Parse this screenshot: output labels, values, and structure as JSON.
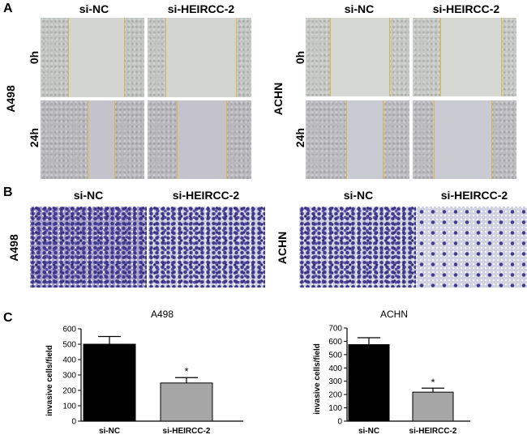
{
  "panels": {
    "A": "A",
    "B": "B",
    "C": "C"
  },
  "conditions": {
    "control": "si-NC",
    "knockdown": "si-HEIRCC-2"
  },
  "cell_lines": {
    "left": "A498",
    "right": "ACHN"
  },
  "timepoints": {
    "t0": "0h",
    "t24": "24h"
  },
  "chart_data": [
    {
      "type": "bar",
      "title": "A498",
      "categories": [
        "si-NC",
        "si-HEIRCC-2"
      ],
      "values": [
        500,
        248
      ],
      "errors": [
        50,
        35
      ],
      "significance": [
        "",
        "*"
      ],
      "ylabel": "invasive cells/field",
      "xlabel": "",
      "ylim": [
        0,
        600
      ],
      "yticks": [
        "0",
        "100",
        "200",
        "300",
        "400",
        "500",
        "600"
      ],
      "colors": [
        "#000000",
        "#a6a6a6"
      ]
    },
    {
      "type": "bar",
      "title": "ACHN",
      "categories": [
        "si-NC",
        "si-HEIRCC-2"
      ],
      "values": [
        575,
        218
      ],
      "errors": [
        52,
        30
      ],
      "significance": [
        "",
        "*"
      ],
      "ylabel": "invasive cells/field",
      "xlabel": "",
      "ylim": [
        0,
        700
      ],
      "yticks": [
        "0",
        "100",
        "200",
        "300",
        "400",
        "500",
        "600",
        "700"
      ],
      "colors": [
        "#000000",
        "#a6a6a6"
      ]
    }
  ]
}
